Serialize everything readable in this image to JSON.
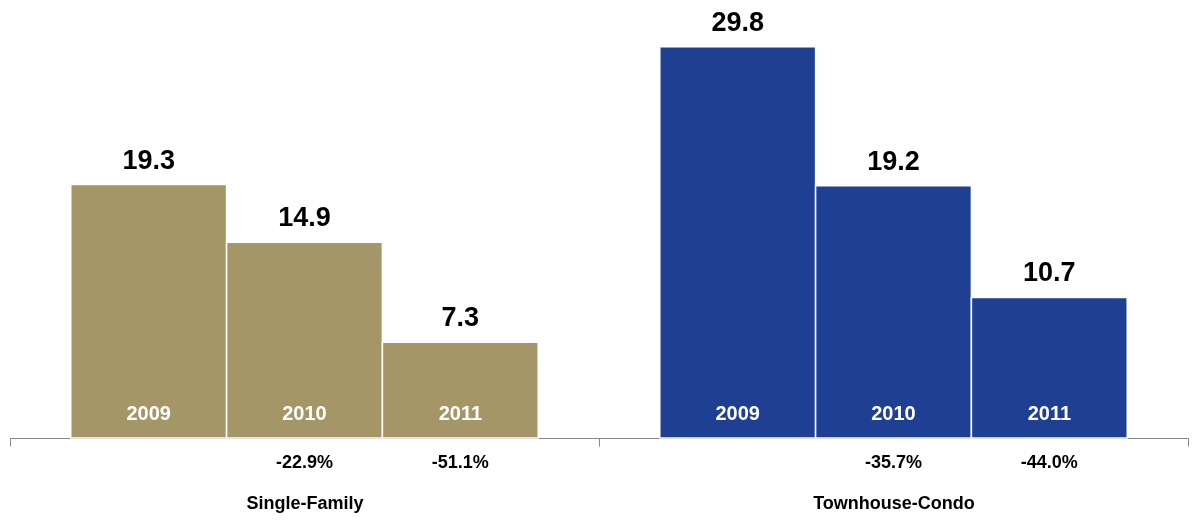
{
  "chart_data": {
    "type": "bar",
    "categories": [
      "Single-Family",
      "Townhouse-Condo"
    ],
    "series": [
      {
        "name": "2009",
        "colors": [
          "#a59668",
          "#1f3f93"
        ],
        "values": [
          19.3,
          29.8
        ]
      },
      {
        "name": "2010",
        "colors": [
          "#a59668",
          "#1f3f93"
        ],
        "values": [
          14.9,
          19.2
        ]
      },
      {
        "name": "2011",
        "colors": [
          "#a59668",
          "#1f3f93"
        ],
        "values": [
          7.3,
          10.7
        ]
      }
    ],
    "data_labels": true,
    "annotations": [
      "-22.9%",
      "-51.1%",
      "-35.7%",
      "-44.0%"
    ]
  }
}
